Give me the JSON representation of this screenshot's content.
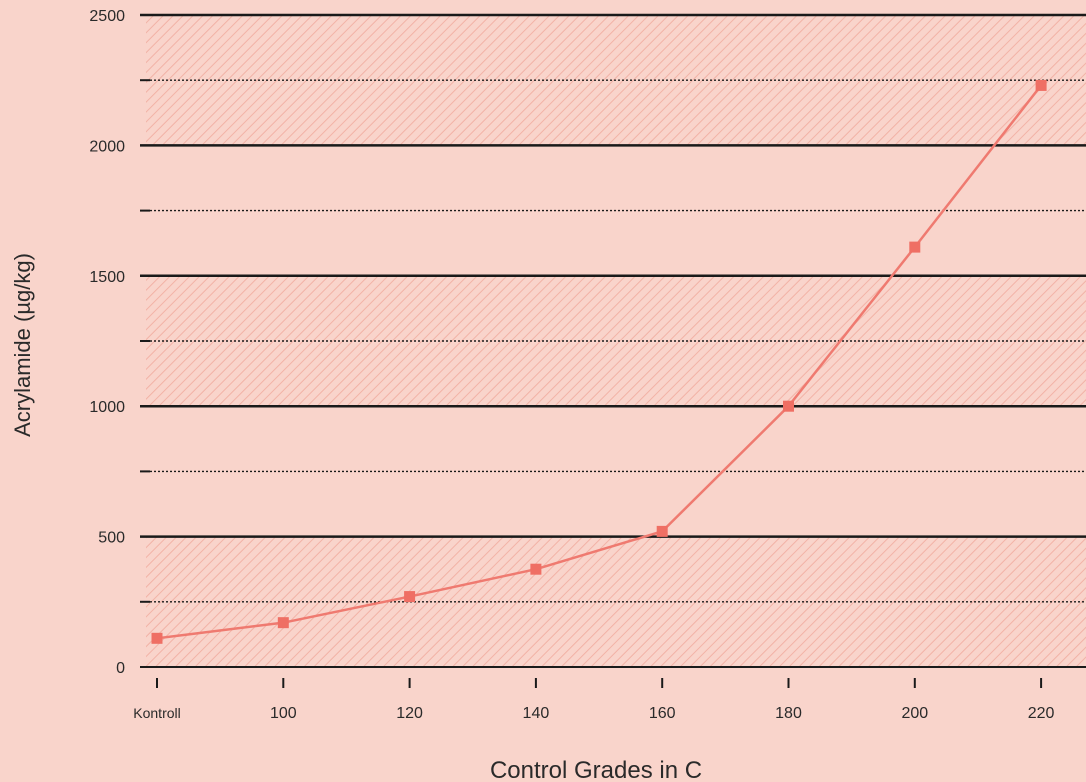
{
  "chart_data": {
    "type": "line",
    "xlabel": "Control Grades in C",
    "ylabel": "Acrylamide (µg/kg)",
    "categories": [
      "Kontroll",
      "100",
      "120",
      "140",
      "160",
      "180",
      "200",
      "220"
    ],
    "series": [
      {
        "values": [
          110,
          170,
          270,
          375,
          520,
          1000,
          1610,
          2230
        ]
      }
    ],
    "ylim": [
      0,
      2500
    ],
    "yticks": [
      0,
      500,
      1000,
      1500,
      2000,
      2500
    ],
    "minor_yticks": [
      250,
      750,
      1250,
      1750,
      2250
    ],
    "grid": true,
    "colors": {
      "background": "#f9d4cb",
      "hatch": "#f2b2a6",
      "line": "#ef7a70",
      "marker": "#ef6f64",
      "major_grid": "#1a1a1a",
      "minor_grid": "#1a1a1a"
    }
  }
}
